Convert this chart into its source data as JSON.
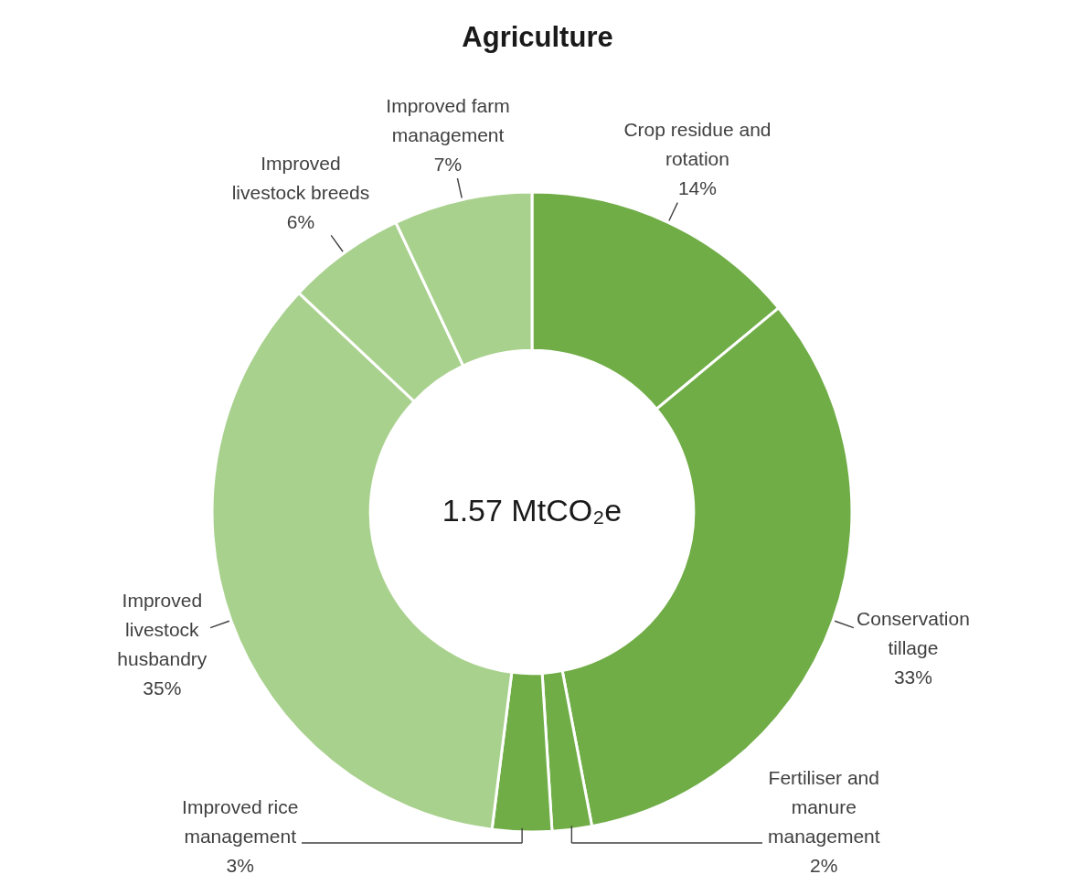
{
  "chart_data": {
    "type": "donut",
    "title": "Agriculture",
    "categories": [
      "Crop residue and rotation",
      "Conservation tillage",
      "Fertiliser and manure management",
      "Improved rice management",
      "Improved livestock husbandry",
      "Improved livestock breeds",
      "Improved farm management"
    ],
    "values": [
      14,
      33,
      2,
      3,
      35,
      6,
      7
    ],
    "value_labels": [
      "14%",
      "33%",
      "2%",
      "3%",
      "35%",
      "6%",
      "7%"
    ],
    "colors": [
      "#70ad47",
      "#70ad47",
      "#70ad47",
      "#70ad47",
      "#a9d18e",
      "#a9d18e",
      "#a9d18e"
    ],
    "annotations": [
      "1.57 MtCO₂e"
    ]
  }
}
